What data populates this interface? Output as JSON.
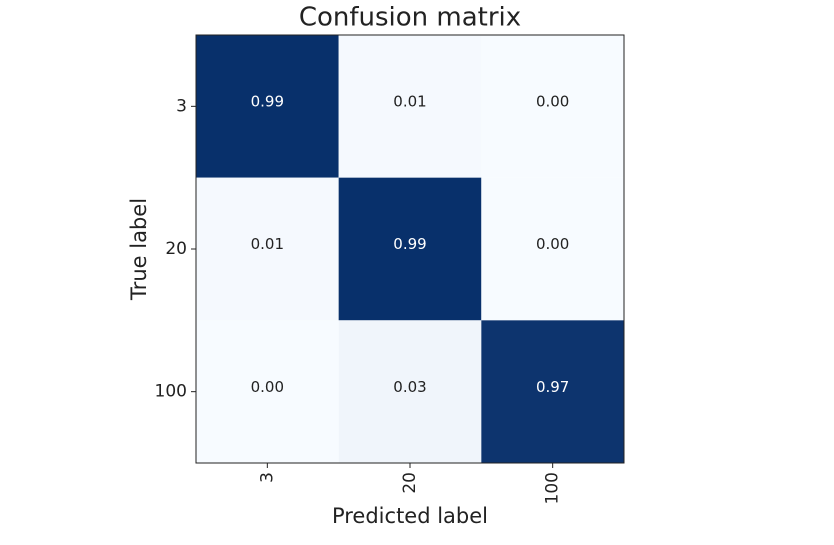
{
  "chart_data": {
    "type": "heatmap",
    "title": "Confusion matrix",
    "xlabel": "Predicted label",
    "ylabel": "True label",
    "x_categories": [
      "3",
      "20",
      "100"
    ],
    "y_categories": [
      "3",
      "20",
      "100"
    ],
    "values": [
      [
        0.99,
        0.01,
        0
      ],
      [
        0.01,
        0.99,
        0
      ],
      [
        0,
        0.03,
        0.97
      ]
    ],
    "value_labels": [
      [
        "0.99",
        "0.01",
        "0.00"
      ],
      [
        "0.01",
        "0.99",
        "0.00"
      ],
      [
        "0.00",
        "0.03",
        "0.97"
      ]
    ],
    "colormap": [
      "#f7fbff",
      "#08306b"
    ]
  }
}
